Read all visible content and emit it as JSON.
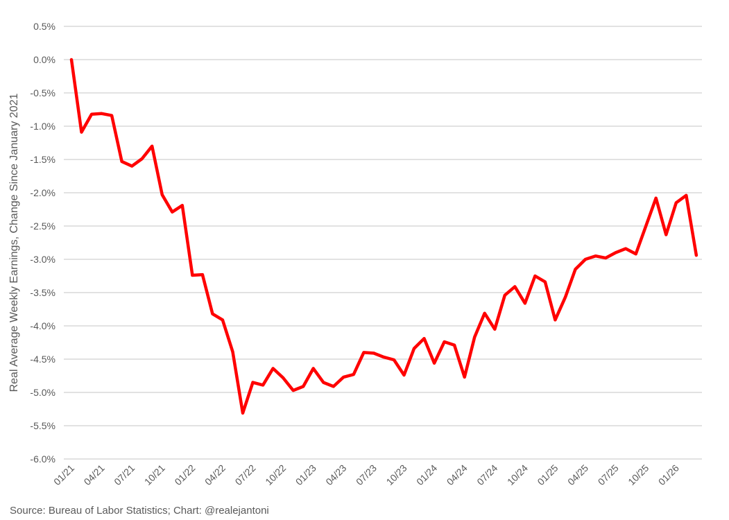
{
  "chart_data": {
    "type": "line",
    "title": "",
    "xlabel": "",
    "ylabel": "Real Average Weekly Earnings, Change Since January 2021",
    "ylim": [
      -6.0,
      0.5
    ],
    "y_ticks": [
      0.5,
      0.0,
      -0.5,
      -1.0,
      -1.5,
      -2.0,
      -2.5,
      -3.0,
      -3.5,
      -4.0,
      -4.5,
      -5.0,
      -5.5,
      -6.0
    ],
    "y_tick_labels": [
      "0.5%",
      "0.0%",
      "-0.5%",
      "-1.0%",
      "-1.5%",
      "-2.0%",
      "-2.5%",
      "-3.0%",
      "-3.5%",
      "-4.0%",
      "-4.5%",
      "-5.0%",
      "-5.5%",
      "-6.0%"
    ],
    "x_tick_labels": [
      "01/21",
      "04/21",
      "07/21",
      "10/21",
      "01/22",
      "04/22",
      "07/22",
      "10/22",
      "01/23",
      "04/23",
      "07/23",
      "10/23",
      "01/24",
      "04/24",
      "07/24",
      "10/24",
      "01/25",
      "04/25",
      "07/25",
      "10/25",
      "01/26"
    ],
    "x_start": "01/21",
    "x_end": "03/26",
    "x_frequency": "monthly",
    "grid": "horizontal",
    "legend": "none",
    "line_color": "#ff0000",
    "grid_color": "#d9d9d9",
    "series": [
      {
        "values": [
          0.0,
          -1.09,
          -0.82,
          -0.81,
          -0.84,
          -1.53,
          -1.6,
          -1.49,
          -1.3,
          -2.03,
          -2.29,
          -2.19,
          -3.24,
          -3.23,
          -3.82,
          -3.91,
          -4.39,
          -5.31,
          -4.85,
          -4.89,
          -4.64,
          -4.78,
          -4.97,
          -4.91,
          -4.64,
          -4.85,
          -4.91,
          -4.77,
          -4.73,
          -4.4,
          -4.41,
          -4.47,
          -4.51,
          -4.74,
          -4.34,
          -4.19,
          -4.56,
          -4.24,
          -4.29,
          -4.77,
          -4.17,
          -3.81,
          -4.05,
          -3.54,
          -3.41,
          -3.66,
          -3.25,
          -3.34,
          -3.91,
          -3.57,
          -3.15,
          -3.0,
          -2.95,
          -2.98,
          -2.9,
          -2.84,
          -2.92,
          -2.5,
          -2.08,
          -2.63,
          -2.15,
          -2.04,
          -2.94
        ]
      }
    ]
  },
  "source": "Source: Bureau of Labor Statistics; Chart: @realejantoni"
}
